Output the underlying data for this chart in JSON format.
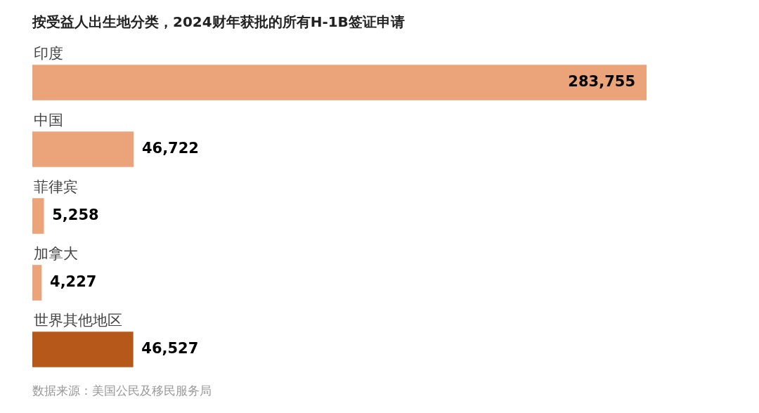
{
  "chart_data": {
    "type": "bar",
    "orientation": "horizontal",
    "title": "按受益人出生地分类，2024财年获批的所有H-1B签证申请",
    "categories": [
      "印度",
      "中国",
      "菲律宾",
      "加拿大",
      "世界其他地区"
    ],
    "values": [
      283755,
      46722,
      5258,
      4227,
      46527
    ],
    "colors": [
      "#eba37a",
      "#eba37a",
      "#eba37a",
      "#eba37a",
      "#b5581a"
    ],
    "value_labels": [
      "283,755",
      "46,722",
      "5,258",
      "4,227",
      "46,527"
    ],
    "annotations": [
      "数据来源：美国公民及移民服务局"
    ]
  }
}
